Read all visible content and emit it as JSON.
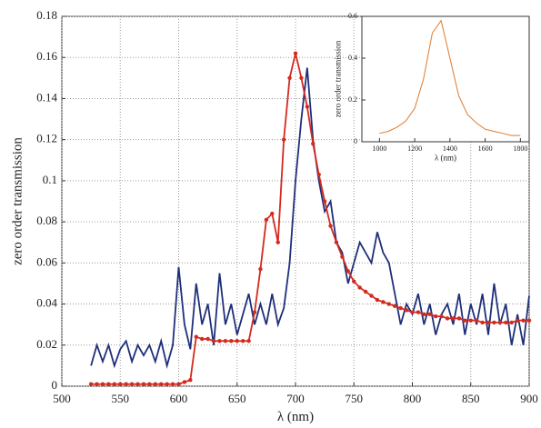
{
  "chart_data": [
    {
      "type": "line",
      "xlabel": "λ (nm)",
      "ylabel": "zero order transmission",
      "xlim": [
        500,
        900
      ],
      "ylim": [
        0,
        0.18
      ],
      "xticks": [
        500,
        550,
        600,
        650,
        700,
        750,
        800,
        850,
        900
      ],
      "yticks": [
        0,
        0.02,
        0.04,
        0.06,
        0.08,
        0.1,
        0.12,
        0.14,
        0.16,
        0.18
      ],
      "grid": true,
      "x": [
        525,
        530,
        535,
        540,
        545,
        550,
        555,
        560,
        565,
        570,
        575,
        580,
        585,
        590,
        595,
        600,
        605,
        610,
        615,
        620,
        625,
        630,
        635,
        640,
        645,
        650,
        655,
        660,
        665,
        670,
        675,
        680,
        685,
        690,
        695,
        700,
        705,
        710,
        715,
        720,
        725,
        730,
        735,
        740,
        745,
        750,
        755,
        760,
        765,
        770,
        775,
        780,
        785,
        790,
        795,
        800,
        805,
        810,
        815,
        820,
        825,
        830,
        835,
        840,
        845,
        850,
        855,
        860,
        865,
        870,
        875,
        880,
        885,
        890,
        895,
        900
      ],
      "series": [
        {
          "color": "#1f2f7a",
          "markers": false,
          "values": [
            0.01,
            0.02,
            0.012,
            0.02,
            0.01,
            0.018,
            0.022,
            0.012,
            0.02,
            0.015,
            0.02,
            0.012,
            0.022,
            0.01,
            0.02,
            0.058,
            0.03,
            0.018,
            0.05,
            0.03,
            0.04,
            0.02,
            0.055,
            0.03,
            0.04,
            0.025,
            0.035,
            0.045,
            0.03,
            0.04,
            0.03,
            0.045,
            0.03,
            0.038,
            0.06,
            0.1,
            0.13,
            0.155,
            0.12,
            0.1,
            0.085,
            0.09,
            0.07,
            0.065,
            0.05,
            0.06,
            0.07,
            0.065,
            0.06,
            0.075,
            0.065,
            0.06,
            0.045,
            0.03,
            0.04,
            0.035,
            0.045,
            0.03,
            0.04,
            0.025,
            0.035,
            0.04,
            0.03,
            0.045,
            0.025,
            0.04,
            0.03,
            0.045,
            0.025,
            0.05,
            0.03,
            0.04,
            0.02,
            0.035,
            0.02,
            0.044
          ]
        },
        {
          "color": "#d42a1e",
          "markers": true,
          "values": [
            0.001,
            0.001,
            0.001,
            0.001,
            0.001,
            0.001,
            0.001,
            0.001,
            0.001,
            0.001,
            0.001,
            0.001,
            0.001,
            0.001,
            0.001,
            0.001,
            0.002,
            0.003,
            0.024,
            0.023,
            0.023,
            0.022,
            0.022,
            0.022,
            0.022,
            0.022,
            0.022,
            0.022,
            0.036,
            0.057,
            0.081,
            0.084,
            0.07,
            0.12,
            0.15,
            0.162,
            0.15,
            0.136,
            0.118,
            0.103,
            0.09,
            0.078,
            0.07,
            0.063,
            0.056,
            0.051,
            0.048,
            0.046,
            0.044,
            0.042,
            0.041,
            0.04,
            0.039,
            0.038,
            0.037,
            0.036,
            0.036,
            0.035,
            0.035,
            0.034,
            0.034,
            0.033,
            0.033,
            0.033,
            0.032,
            0.032,
            0.032,
            0.031,
            0.031,
            0.031,
            0.031,
            0.031,
            0.031,
            0.032,
            0.032,
            0.032
          ]
        }
      ]
    },
    {
      "type": "line",
      "xlabel": "λ (nm)",
      "ylabel": "zero order transmission",
      "xlim": [
        900,
        1850
      ],
      "ylim": [
        0,
        0.6
      ],
      "xticks": [
        1000,
        1200,
        1400,
        1600,
        1800
      ],
      "yticks": [
        0,
        0.2,
        0.4,
        0.6
      ],
      "grid": false,
      "x": [
        1000,
        1050,
        1100,
        1150,
        1200,
        1250,
        1300,
        1350,
        1400,
        1450,
        1500,
        1550,
        1600,
        1650,
        1700,
        1750,
        1800
      ],
      "series": [
        {
          "color": "#e07a2a",
          "markers": false,
          "values": [
            0.04,
            0.05,
            0.07,
            0.1,
            0.16,
            0.3,
            0.52,
            0.58,
            0.4,
            0.22,
            0.13,
            0.09,
            0.06,
            0.05,
            0.04,
            0.03,
            0.03
          ]
        }
      ]
    }
  ]
}
